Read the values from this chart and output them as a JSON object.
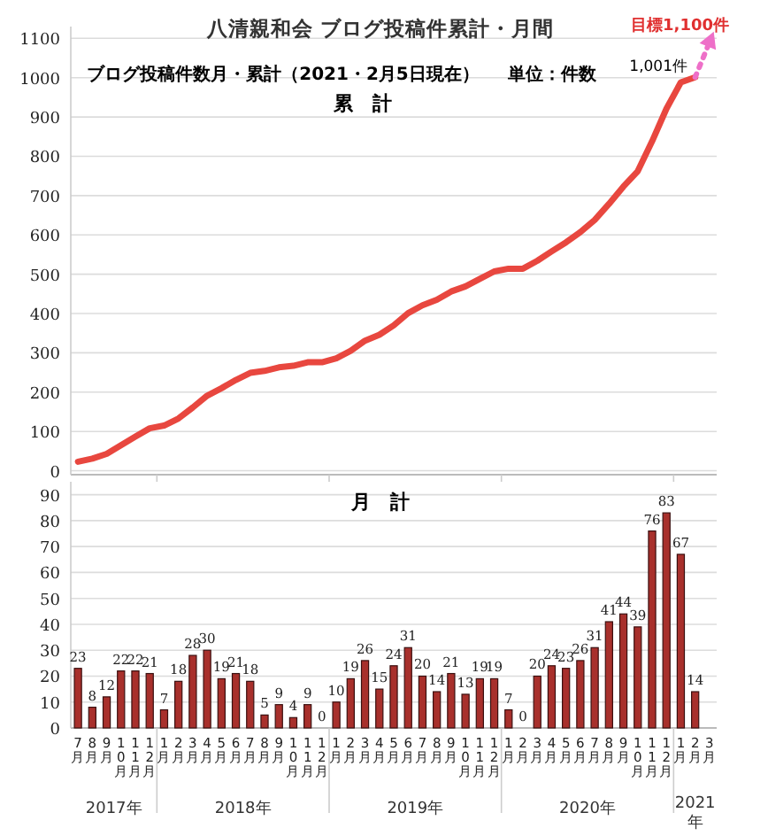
{
  "chart_data": [
    {
      "type": "line",
      "title": "八清親和会 ブログ投稿件累計・月間",
      "subtitle": "ブログ投稿件数月・累計（2021・2月5日現在）",
      "annotations": [
        "単位：件数",
        "累　計",
        "1,001件",
        "目標1,100件"
      ],
      "categories": [
        null,
        null,
        null,
        null,
        null,
        null,
        null,
        null,
        null,
        null,
        null,
        null,
        null,
        null,
        null,
        null,
        null,
        null,
        null,
        null,
        null,
        null,
        null,
        null,
        null,
        null,
        null,
        null,
        null,
        null,
        null,
        null,
        null,
        null,
        null,
        null,
        null,
        null,
        null,
        null,
        null,
        null,
        null,
        null,
        null
      ],
      "series": [
        {
          "color": "#e8473f",
          "values": [
            23,
            31,
            43,
            65,
            87,
            108,
            115,
            133,
            161,
            191,
            210,
            231,
            249,
            254,
            263,
            267,
            276,
            276,
            286,
            305,
            331,
            346,
            370,
            401,
            421,
            435,
            456,
            469,
            488,
            507,
            514,
            514,
            534,
            558,
            581,
            607,
            638,
            679,
            723,
            762,
            838,
            921,
            988,
            1001,
            null
          ]
        }
      ],
      "ylim": [
        -10,
        1130
      ],
      "yticks": [
        0,
        100,
        200,
        300,
        400,
        500,
        600,
        700,
        800,
        900,
        1000,
        1100
      ],
      "grid": "y",
      "tick_labels": "y"
    },
    {
      "type": "bar",
      "title": "月　計",
      "annotations": [
        "2017年",
        "2018年",
        "2019年",
        "2020年",
        "2021年"
      ],
      "categories": [
        "7月",
        "8月",
        "9月",
        "10月",
        "11月",
        "12月",
        "1月",
        "2月",
        "3月",
        "4月",
        "5月",
        "6月",
        "7月",
        "8月",
        "9月",
        "10月",
        "11月",
        "12月",
        "1月",
        "2月",
        "3月",
        "4月",
        "5月",
        "6月",
        "7月",
        "8月",
        "9月",
        "10月",
        "11月",
        "12月",
        "1月",
        "2月",
        "3月",
        "4月",
        "5月",
        "6月",
        "7月",
        "8月",
        "9月",
        "10月",
        "11月",
        "12月",
        "1月",
        "2月",
        "3月"
      ],
      "values": [
        23,
        8,
        12,
        22,
        22,
        21,
        7,
        18,
        28,
        30,
        19,
        21,
        18,
        5,
        9,
        4,
        9,
        0,
        10,
        19,
        26,
        15,
        24,
        31,
        20,
        14,
        21,
        13,
        19,
        19,
        7,
        0,
        20,
        24,
        23,
        26,
        31,
        41,
        44,
        39,
        76,
        83,
        67,
        14,
        null
      ],
      "color": "#a8302c",
      "ylim": [
        0,
        95
      ],
      "yticks": [
        0,
        10,
        20,
        30,
        40,
        50,
        60,
        70,
        80,
        90
      ],
      "grid": "y",
      "data_labels": true
    }
  ]
}
